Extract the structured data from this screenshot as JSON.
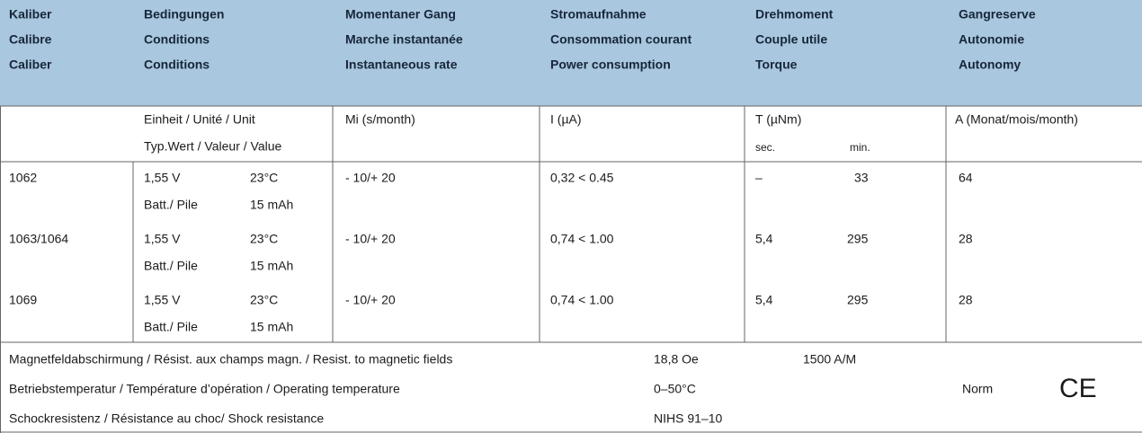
{
  "header": [
    [
      "Kaliber",
      "Calibre",
      "Caliber"
    ],
    [
      "Bedingungen",
      "Conditions",
      "Conditions"
    ],
    [
      "Momentaner Gang",
      "Marche instantanée",
      "Instantaneous rate"
    ],
    [
      "Stromaufnahme",
      "Consommation courant",
      "Power consumption"
    ],
    [
      "Drehmoment",
      "Couple utile",
      "Torque"
    ],
    [
      "Gangreserve",
      "Autonomie",
      "Autonomy"
    ]
  ],
  "units": {
    "conditions": [
      "Einheit / Unité / Unit",
      "Typ.Wert / Valeur / Value"
    ],
    "rate": "Mi (s/month)",
    "current": "I (µA)",
    "torque": "T (µNm)",
    "torque_sub": [
      "sec.",
      "min."
    ],
    "reserve": "A (Monat/mois/month)"
  },
  "rows": [
    {
      "caliber": "1062",
      "conditions": [
        [
          "1,55 V",
          "23°C"
        ],
        [
          "Batt./ Pile",
          "15 mAh"
        ]
      ],
      "rate": "- 10/+ 20",
      "current": "0,32 < 0.45",
      "torque": [
        "–",
        "33"
      ],
      "reserve": "64"
    },
    {
      "caliber": "1063/1064",
      "conditions": [
        [
          "1,55 V",
          "23°C"
        ],
        [
          "Batt./ Pile",
          "15 mAh"
        ]
      ],
      "rate": "- 10/+ 20",
      "current": "0,74 < 1.00",
      "torque": [
        "5,4",
        "295"
      ],
      "reserve": "28"
    },
    {
      "caliber": "1069",
      "conditions": [
        [
          "1,55 V",
          "23°C"
        ],
        [
          "Batt./ Pile",
          "15 mAh"
        ]
      ],
      "rate": "- 10/+ 20",
      "current": "0,74 < 1.00",
      "torque": [
        "5,4",
        "295"
      ],
      "reserve": "28"
    }
  ],
  "footer": [
    {
      "label": "Magnetfeldabschirmung / Résist. aux champs magn. / Resist. to magnetic fields",
      "values": [
        "18,8 Oe",
        "1500 A/M"
      ]
    },
    {
      "label": "Betriebstemperatur / Température d’opération / Operating temperature",
      "values": [
        "0–50°C"
      ]
    },
    {
      "label": "Schockresistenz / Résistance au choc/ Shock resistance",
      "values": [
        "NIHS 91–10"
      ]
    }
  ],
  "norm": {
    "label": "Norm",
    "mark": "CE"
  }
}
